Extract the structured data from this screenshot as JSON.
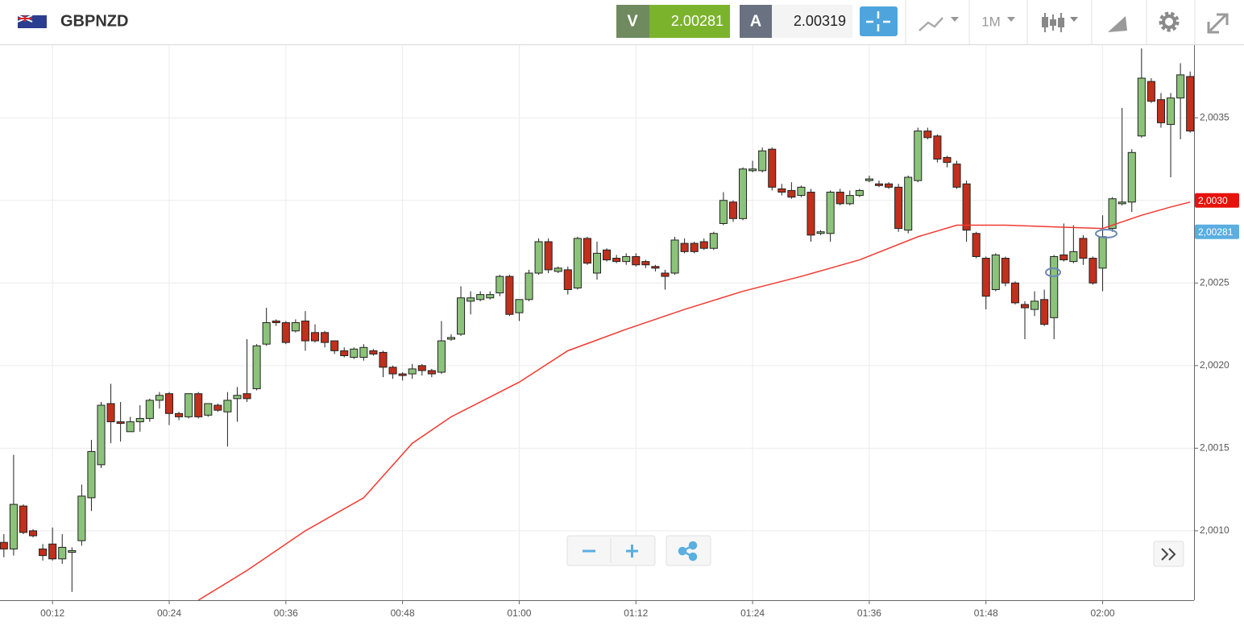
{
  "toolbar": {
    "symbol": "GBPNZD",
    "bid_label": "V",
    "bid": "2.00281",
    "ask_label": "A",
    "ask": "2.00319",
    "timeframe": "1M"
  },
  "chart_data": {
    "type": "candlestick",
    "up_color": "#8cc37a",
    "down_color": "#c0301c",
    "xlim": [
      6.6,
      129.4
    ],
    "ylim": [
      2.00058,
      2.00394
    ],
    "xticks": [
      {
        "value": 12,
        "label": "00:12"
      },
      {
        "value": 24,
        "label": "00:24"
      },
      {
        "value": 36,
        "label": "00:36"
      },
      {
        "value": 48,
        "label": "00:48"
      },
      {
        "value": 60,
        "label": "01:00"
      },
      {
        "value": 72,
        "label": "01:12"
      },
      {
        "value": 84,
        "label": "01:24"
      },
      {
        "value": 96,
        "label": "01:36"
      },
      {
        "value": 108,
        "label": "01:48"
      },
      {
        "value": 120,
        "label": "02:00"
      }
    ],
    "yticks": [
      {
        "value": 2.001,
        "label": "2,0010"
      },
      {
        "value": 2.0015,
        "label": "2,0015"
      },
      {
        "value": 2.002,
        "label": "2,0020"
      },
      {
        "value": 2.0025,
        "label": "2,0025"
      },
      {
        "value": 2.003,
        "label": "2,0030"
      },
      {
        "value": 2.0035,
        "label": "2,0035"
      }
    ],
    "grid": true,
    "x": [
      7,
      8,
      9,
      10,
      11,
      12,
      13,
      14,
      15,
      16,
      17,
      18,
      19,
      20,
      21,
      22,
      23,
      24,
      25,
      26,
      27,
      28,
      29,
      30,
      31,
      32,
      33,
      34,
      35,
      36,
      37,
      38,
      39,
      40,
      41,
      42,
      43,
      44,
      45,
      46,
      47,
      48,
      49,
      50,
      51,
      52,
      53,
      54,
      55,
      56,
      57,
      58,
      59,
      60,
      61,
      62,
      63,
      64,
      65,
      66,
      67,
      68,
      69,
      70,
      71,
      72,
      73,
      74,
      75,
      76,
      77,
      78,
      79,
      80,
      81,
      82,
      83,
      84,
      85,
      86,
      87,
      88,
      89,
      90,
      91,
      92,
      93,
      94,
      95,
      96,
      97,
      98,
      99,
      100,
      101,
      102,
      103,
      104,
      105,
      106,
      107,
      108,
      109,
      110,
      111,
      112,
      113,
      114,
      115,
      116,
      117,
      118,
      119,
      120,
      121,
      122,
      123,
      124,
      125,
      126,
      127,
      128,
      129
    ],
    "open": [
      2.00093,
      2.00089,
      2.00115,
      2.001,
      2.00089,
      2.00092,
      2.00083,
      2.00087,
      2.00094,
      2.0012,
      2.0014,
      2.00177,
      2.00166,
      2.0016,
      2.00166,
      2.00168,
      2.00179,
      2.00183,
      2.00171,
      2.00169,
      2.00183,
      2.0017,
      2.00176,
      2.00172,
      2.0018,
      2.00183,
      2.00186,
      2.00213,
      2.00227,
      2.00226,
      2.00221,
      2.00227,
      2.0022,
      2.0022,
      2.00215,
      2.00209,
      2.00205,
      2.00205,
      2.00209,
      2.00208,
      2.00199,
      2.00195,
      2.00195,
      2.002,
      2.00197,
      2.00196,
      2.00216,
      2.00219,
      2.00239,
      2.0024,
      2.00241,
      2.00244,
      2.00254,
      2.00232,
      2.0024,
      2.00256,
      2.00275,
      2.00257,
      2.00258,
      2.00247,
      2.00277,
      2.00256,
      2.0027,
      2.00265,
      2.00263,
      2.00266,
      2.00263,
      2.0026,
      2.00256,
      2.00256,
      2.00274,
      2.00274,
      2.00275,
      2.00271,
      2.00286,
      2.00299,
      2.00289,
      2.00318,
      2.00318,
      2.00331,
      2.00307,
      2.00306,
      2.00303,
      2.00305,
      2.0028,
      2.0028,
      2.00305,
      2.00298,
      2.00303,
      2.00312,
      2.0031,
      2.0031,
      2.00308,
      2.00282,
      2.00312,
      2.00342,
      2.00339,
      2.00326,
      2.00322,
      2.0031,
      2.0028,
      2.00265,
      2.00246,
      2.00265,
      2.0025,
      2.00237,
      2.00234,
      2.0024,
      2.00229,
      2.00267,
      2.00263,
      2.00277,
      2.00265,
      2.00259,
      2.00283,
      2.00298,
      2.00299,
      2.00339,
      2.00372,
      2.00361,
      2.00346,
      2.00362,
      2.00375
    ],
    "high": [
      2.00098,
      2.00146,
      2.00116,
      2.00101,
      2.00092,
      2.00102,
      2.00098,
      2.0009,
      2.00128,
      2.00155,
      2.00178,
      2.00189,
      2.00178,
      2.00169,
      2.00176,
      2.0018,
      2.00184,
      2.00184,
      2.00172,
      2.00183,
      2.00184,
      2.00177,
      2.00177,
      2.00184,
      2.00187,
      2.00216,
      2.00213,
      2.00235,
      2.00228,
      2.00227,
      2.00228,
      2.00233,
      2.00225,
      2.00221,
      2.00215,
      2.00211,
      2.00211,
      2.00213,
      2.0021,
      2.00209,
      2.002,
      2.00196,
      2.00201,
      2.00201,
      2.00198,
      2.00227,
      2.00219,
      2.00248,
      2.00245,
      2.00245,
      2.00245,
      2.00255,
      2.00255,
      2.0024,
      2.00258,
      2.00277,
      2.00277,
      2.0026,
      2.0026,
      2.00278,
      2.00278,
      2.00275,
      2.00271,
      2.00267,
      2.00268,
      2.00268,
      2.00264,
      2.00261,
      2.00258,
      2.00278,
      2.00277,
      2.00275,
      2.00277,
      2.00281,
      2.00305,
      2.003,
      2.0032,
      2.00324,
      2.00332,
      2.00332,
      2.0031,
      2.00311,
      2.00309,
      2.00307,
      2.00282,
      2.00306,
      2.00307,
      2.00306,
      2.00307,
      2.00315,
      2.00312,
      2.00311,
      2.0031,
      2.00315,
      2.00344,
      2.00344,
      2.0034,
      2.00327,
      2.00324,
      2.00312,
      2.00281,
      2.00266,
      2.00268,
      2.00266,
      2.00251,
      2.00239,
      2.00245,
      2.00246,
      2.00267,
      2.00286,
      2.00285,
      2.00279,
      2.00266,
      2.00291,
      2.00302,
      2.00356,
      2.00331,
      2.00392,
      2.00374,
      2.00365,
      2.00365,
      2.00383,
      2.00378
    ],
    "low": [
      2.00084,
      2.00085,
      2.00098,
      2.00096,
      2.00082,
      2.00082,
      2.0008,
      2.00063,
      2.00091,
      2.00112,
      2.00138,
      2.00153,
      2.00154,
      2.0016,
      2.0016,
      2.00166,
      2.00174,
      2.00164,
      2.00167,
      2.00168,
      2.00168,
      2.00169,
      2.00172,
      2.00151,
      2.00166,
      2.00178,
      2.00185,
      2.00212,
      2.00224,
      2.00213,
      2.0022,
      2.00209,
      2.00214,
      2.00211,
      2.00207,
      2.00205,
      2.00204,
      2.00203,
      2.00206,
      2.00193,
      2.00192,
      2.00191,
      2.00192,
      2.00194,
      2.00193,
      2.00195,
      2.00215,
      2.00218,
      2.00231,
      2.00239,
      2.0024,
      2.00242,
      2.0023,
      2.00227,
      2.00239,
      2.00255,
      2.00256,
      2.00256,
      2.00243,
      2.00246,
      2.00261,
      2.00252,
      2.00263,
      2.00262,
      2.00261,
      2.0026,
      2.00259,
      2.00257,
      2.00246,
      2.00255,
      2.00268,
      2.00268,
      2.0027,
      2.0027,
      2.00285,
      2.00287,
      2.00288,
      2.00317,
      2.00317,
      2.00306,
      2.00303,
      2.00301,
      2.00302,
      2.00275,
      2.00279,
      2.00275,
      2.00297,
      2.00297,
      2.00302,
      2.00311,
      2.00308,
      2.00307,
      2.00281,
      2.0028,
      2.00311,
      2.00337,
      2.00323,
      2.0032,
      2.00307,
      2.00275,
      2.00265,
      2.00234,
      2.00245,
      2.00248,
      2.00237,
      2.00216,
      2.0023,
      2.00224,
      2.00216,
      2.00263,
      2.00262,
      2.00261,
      2.00249,
      2.00245,
      2.00281,
      2.00297,
      2.00293,
      2.00338,
      2.00359,
      2.00344,
      2.00314,
      2.00337,
      2.00341
    ],
    "close": [
      2.00089,
      2.00116,
      2.00099,
      2.00097,
      2.00085,
      2.00083,
      2.0009,
      2.00088,
      2.00121,
      2.00148,
      2.00176,
      2.00166,
      2.00165,
      2.00166,
      2.00168,
      2.00179,
      2.00182,
      2.00171,
      2.00169,
      2.00183,
      2.00169,
      2.00177,
      2.00173,
      2.00179,
      2.00182,
      2.0018,
      2.00212,
      2.00226,
      2.00226,
      2.00214,
      2.00226,
      2.00215,
      2.00215,
      2.00214,
      2.00209,
      2.00206,
      2.0021,
      2.00211,
      2.00207,
      2.00199,
      2.00195,
      2.00194,
      2.00198,
      2.00197,
      2.00195,
      2.00215,
      2.00217,
      2.00241,
      2.00241,
      2.00243,
      2.00243,
      2.00254,
      2.00231,
      2.0024,
      2.00256,
      2.00275,
      2.00258,
      2.00259,
      2.00246,
      2.00277,
      2.00262,
      2.00268,
      2.00264,
      2.00263,
      2.00266,
      2.00261,
      2.00261,
      2.00259,
      2.00254,
      2.00276,
      2.00269,
      2.00269,
      2.00271,
      2.0028,
      2.003,
      2.00289,
      2.00319,
      2.00319,
      2.0033,
      2.00308,
      2.00305,
      2.00302,
      2.00308,
      2.00279,
      2.00281,
      2.00305,
      2.00298,
      2.00303,
      2.00306,
      2.00313,
      2.00309,
      2.00308,
      2.00283,
      2.00314,
      2.00342,
      2.00338,
      2.00325,
      2.00323,
      2.00308,
      2.00282,
      2.00266,
      2.00242,
      2.00267,
      2.0025,
      2.00238,
      2.00235,
      2.00239,
      2.00225,
      2.00266,
      2.00264,
      2.00269,
      2.00265,
      2.0025,
      2.00278,
      2.00301,
      2.00299,
      2.00329,
      2.00374,
      2.0036,
      2.00347,
      2.00362,
      2.00376,
      2.00342
    ],
    "moving_average": {
      "color": "#f03a30",
      "x": [
        27,
        32,
        38,
        44,
        49,
        53,
        60,
        65,
        71,
        77,
        83,
        89,
        95,
        101,
        105,
        110,
        115,
        120,
        124,
        127,
        129
      ],
      "values": [
        2.00058,
        2.00076,
        2.001,
        2.0012,
        2.00153,
        2.00169,
        2.0019,
        2.00209,
        2.00222,
        2.00234,
        2.00245,
        2.00254,
        2.00264,
        2.00278,
        2.00285,
        2.00285,
        2.00284,
        2.00283,
        2.00291,
        2.00296,
        2.00299
      ]
    },
    "price_markers": [
      {
        "value": 2.003,
        "label": "2,0030",
        "color": "#e8120c"
      },
      {
        "value": 2.00281,
        "label": "2,00281",
        "color": "#5aaee0"
      }
    ]
  }
}
